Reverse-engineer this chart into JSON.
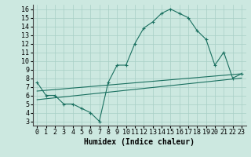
{
  "xlabel": "Humidex (Indice chaleur)",
  "bg_color": "#cce8e0",
  "line_color": "#1a7060",
  "xlim": [
    -0.5,
    23.5
  ],
  "ylim": [
    2.5,
    16.5
  ],
  "xticks": [
    0,
    1,
    2,
    3,
    4,
    5,
    6,
    7,
    8,
    9,
    10,
    11,
    12,
    13,
    14,
    15,
    16,
    17,
    18,
    19,
    20,
    21,
    22,
    23
  ],
  "yticks": [
    3,
    4,
    5,
    6,
    7,
    8,
    9,
    10,
    11,
    12,
    13,
    14,
    15,
    16
  ],
  "line1_x": [
    0,
    1,
    2,
    3,
    4,
    5,
    6,
    7,
    8,
    9,
    10,
    11,
    12,
    13,
    14,
    15,
    16,
    17,
    18,
    19,
    20,
    21,
    22,
    23
  ],
  "line1_y": [
    7.5,
    6.0,
    6.0,
    5.0,
    5.0,
    4.5,
    4.0,
    3.0,
    7.5,
    9.5,
    9.5,
    12.0,
    13.8,
    14.5,
    15.5,
    16.0,
    15.5,
    15.0,
    13.5,
    12.5,
    9.5,
    11.0,
    8.0,
    8.5
  ],
  "line2_x": [
    0,
    23
  ],
  "line2_y": [
    6.5,
    8.5
  ],
  "line3_x": [
    0,
    23
  ],
  "line3_y": [
    5.5,
    8.0
  ],
  "gridcolor": "#a8cfc5",
  "fontsize_label": 7,
  "fontsize_tick": 6
}
